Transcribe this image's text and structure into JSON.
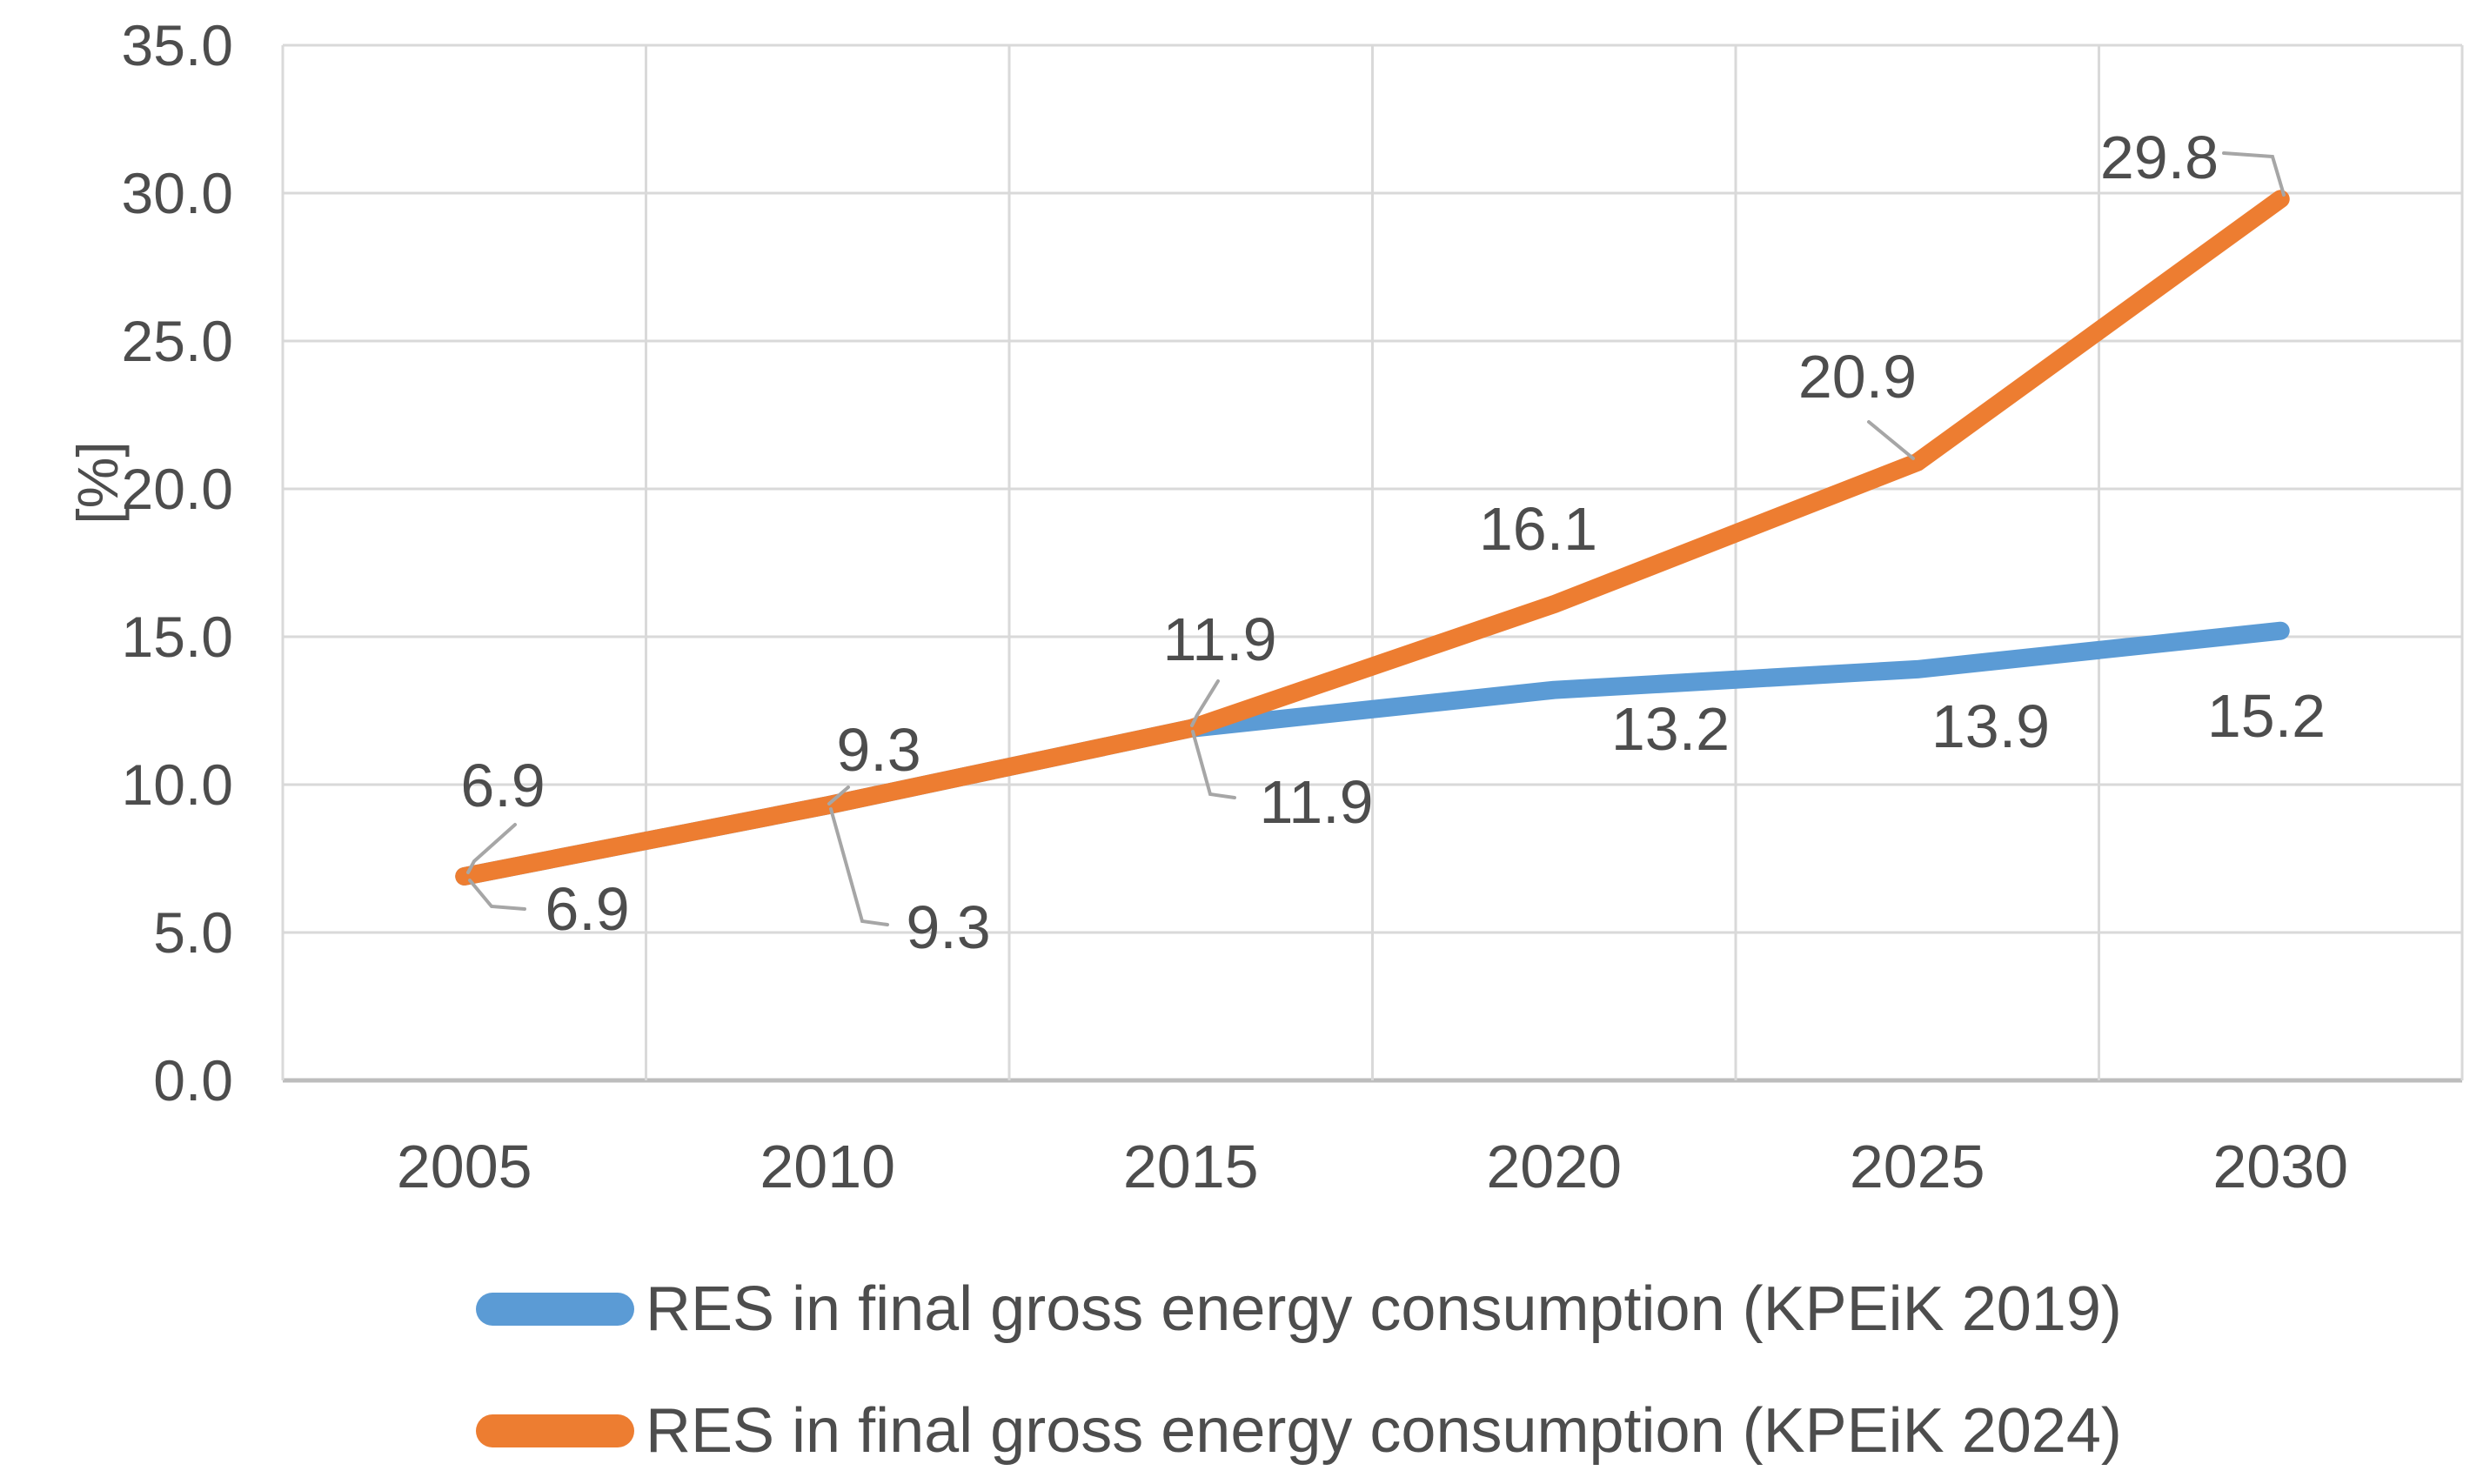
{
  "chart_data": {
    "type": "line",
    "title": "",
    "xlabel": "",
    "ylabel": "[%]",
    "categories": [
      "2005",
      "2010",
      "2015",
      "2020",
      "2025",
      "2030"
    ],
    "y_axis": {
      "min": 0,
      "max": 35,
      "step": 5,
      "ylim": [
        0,
        35
      ],
      "tick_labels": [
        "35.0",
        "30.0",
        "25.0",
        "20.0",
        "15.0",
        "10.0",
        "5.0",
        "0.0"
      ]
    },
    "grid": true,
    "legend_position": "bottom",
    "series": [
      {
        "name": "RES in final gross energy consumption (KPEiK 2019)",
        "color": "#5B9BD5",
        "values": [
          6.9,
          9.3,
          11.9,
          13.2,
          13.9,
          15.2
        ],
        "data_labels": [
          "6.9",
          "9.3",
          "11.9",
          "13.2",
          "13.9",
          "15.2"
        ],
        "label_positions": [
          [
            675,
            1045
          ],
          [
            1090,
            1066
          ],
          [
            1513,
            922
          ],
          [
            1920,
            838
          ],
          [
            2288,
            835
          ],
          [
            2605,
            823
          ]
        ],
        "label_leaders": [
          [
            [
              540,
              1012
            ],
            [
              565,
              1042
            ],
            [
              603,
              1045
            ]
          ],
          [
            [
              955,
              930
            ],
            [
              991,
              1059
            ],
            [
              1020,
              1063
            ]
          ],
          [
            [
              1371,
              841
            ],
            [
              1391,
              913
            ],
            [
              1419,
              917
            ]
          ],
          null,
          null,
          null
        ]
      },
      {
        "name": "RES in final gross energy consumption (KPEiK 2024)",
        "color": "#ED7D31",
        "values": [
          6.9,
          9.3,
          11.9,
          16.1,
          20.9,
          29.8
        ],
        "data_labels": [
          "6.9",
          "9.3",
          "11.9",
          "16.1",
          "20.9",
          "29.8"
        ],
        "label_positions": [
          [
            578,
            903
          ],
          [
            1010,
            862
          ],
          [
            1402,
            735
          ],
          [
            1768,
            608
          ],
          [
            2135,
            433
          ],
          [
            2482,
            181
          ]
        ],
        "label_leaders": [
          [
            [
              592,
              948
            ],
            [
              545,
              990
            ],
            [
              538,
              1003
            ]
          ],
          [
            [
              975,
              905
            ],
            [
              953,
              924
            ]
          ],
          [
            [
              1400,
              783
            ],
            [
              1376,
              822
            ],
            [
              1370,
              834
            ]
          ],
          null,
          [
            [
              2148,
              485
            ],
            [
              2199,
              527
            ]
          ],
          [
            [
              2556,
              176
            ],
            [
              2612,
              180
            ],
            [
              2625,
              224
            ]
          ]
        ]
      }
    ],
    "style": {
      "gridline_color": "#D9D9D9",
      "axis_line_color": "#BDBDBD",
      "leader_line_color": "#A6A6A6",
      "tick_label_color": "#4d4d4d",
      "data_label_color": "#4d4d4d"
    }
  }
}
